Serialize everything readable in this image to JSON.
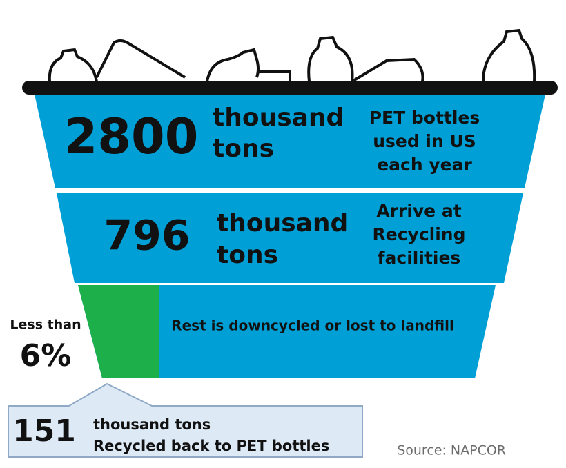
{
  "tiers": [
    {
      "value": "2800",
      "unit": [
        "thousand",
        "tons"
      ],
      "description": [
        "PET bottles",
        "used in US",
        "each year"
      ]
    },
    {
      "value": "796",
      "unit": [
        "thousand",
        "tons"
      ],
      "description": [
        "Arrive at",
        "Recycling",
        "facilities"
      ]
    },
    {
      "description": [
        "Rest is downcycled or lost to landfill"
      ]
    }
  ],
  "share": {
    "prefix": "Less than",
    "value": "6%"
  },
  "callout": {
    "value": "151",
    "lines": [
      "thousand tons",
      "Recycled back to PET bottles"
    ]
  },
  "source": "Source: NAPCOR"
}
